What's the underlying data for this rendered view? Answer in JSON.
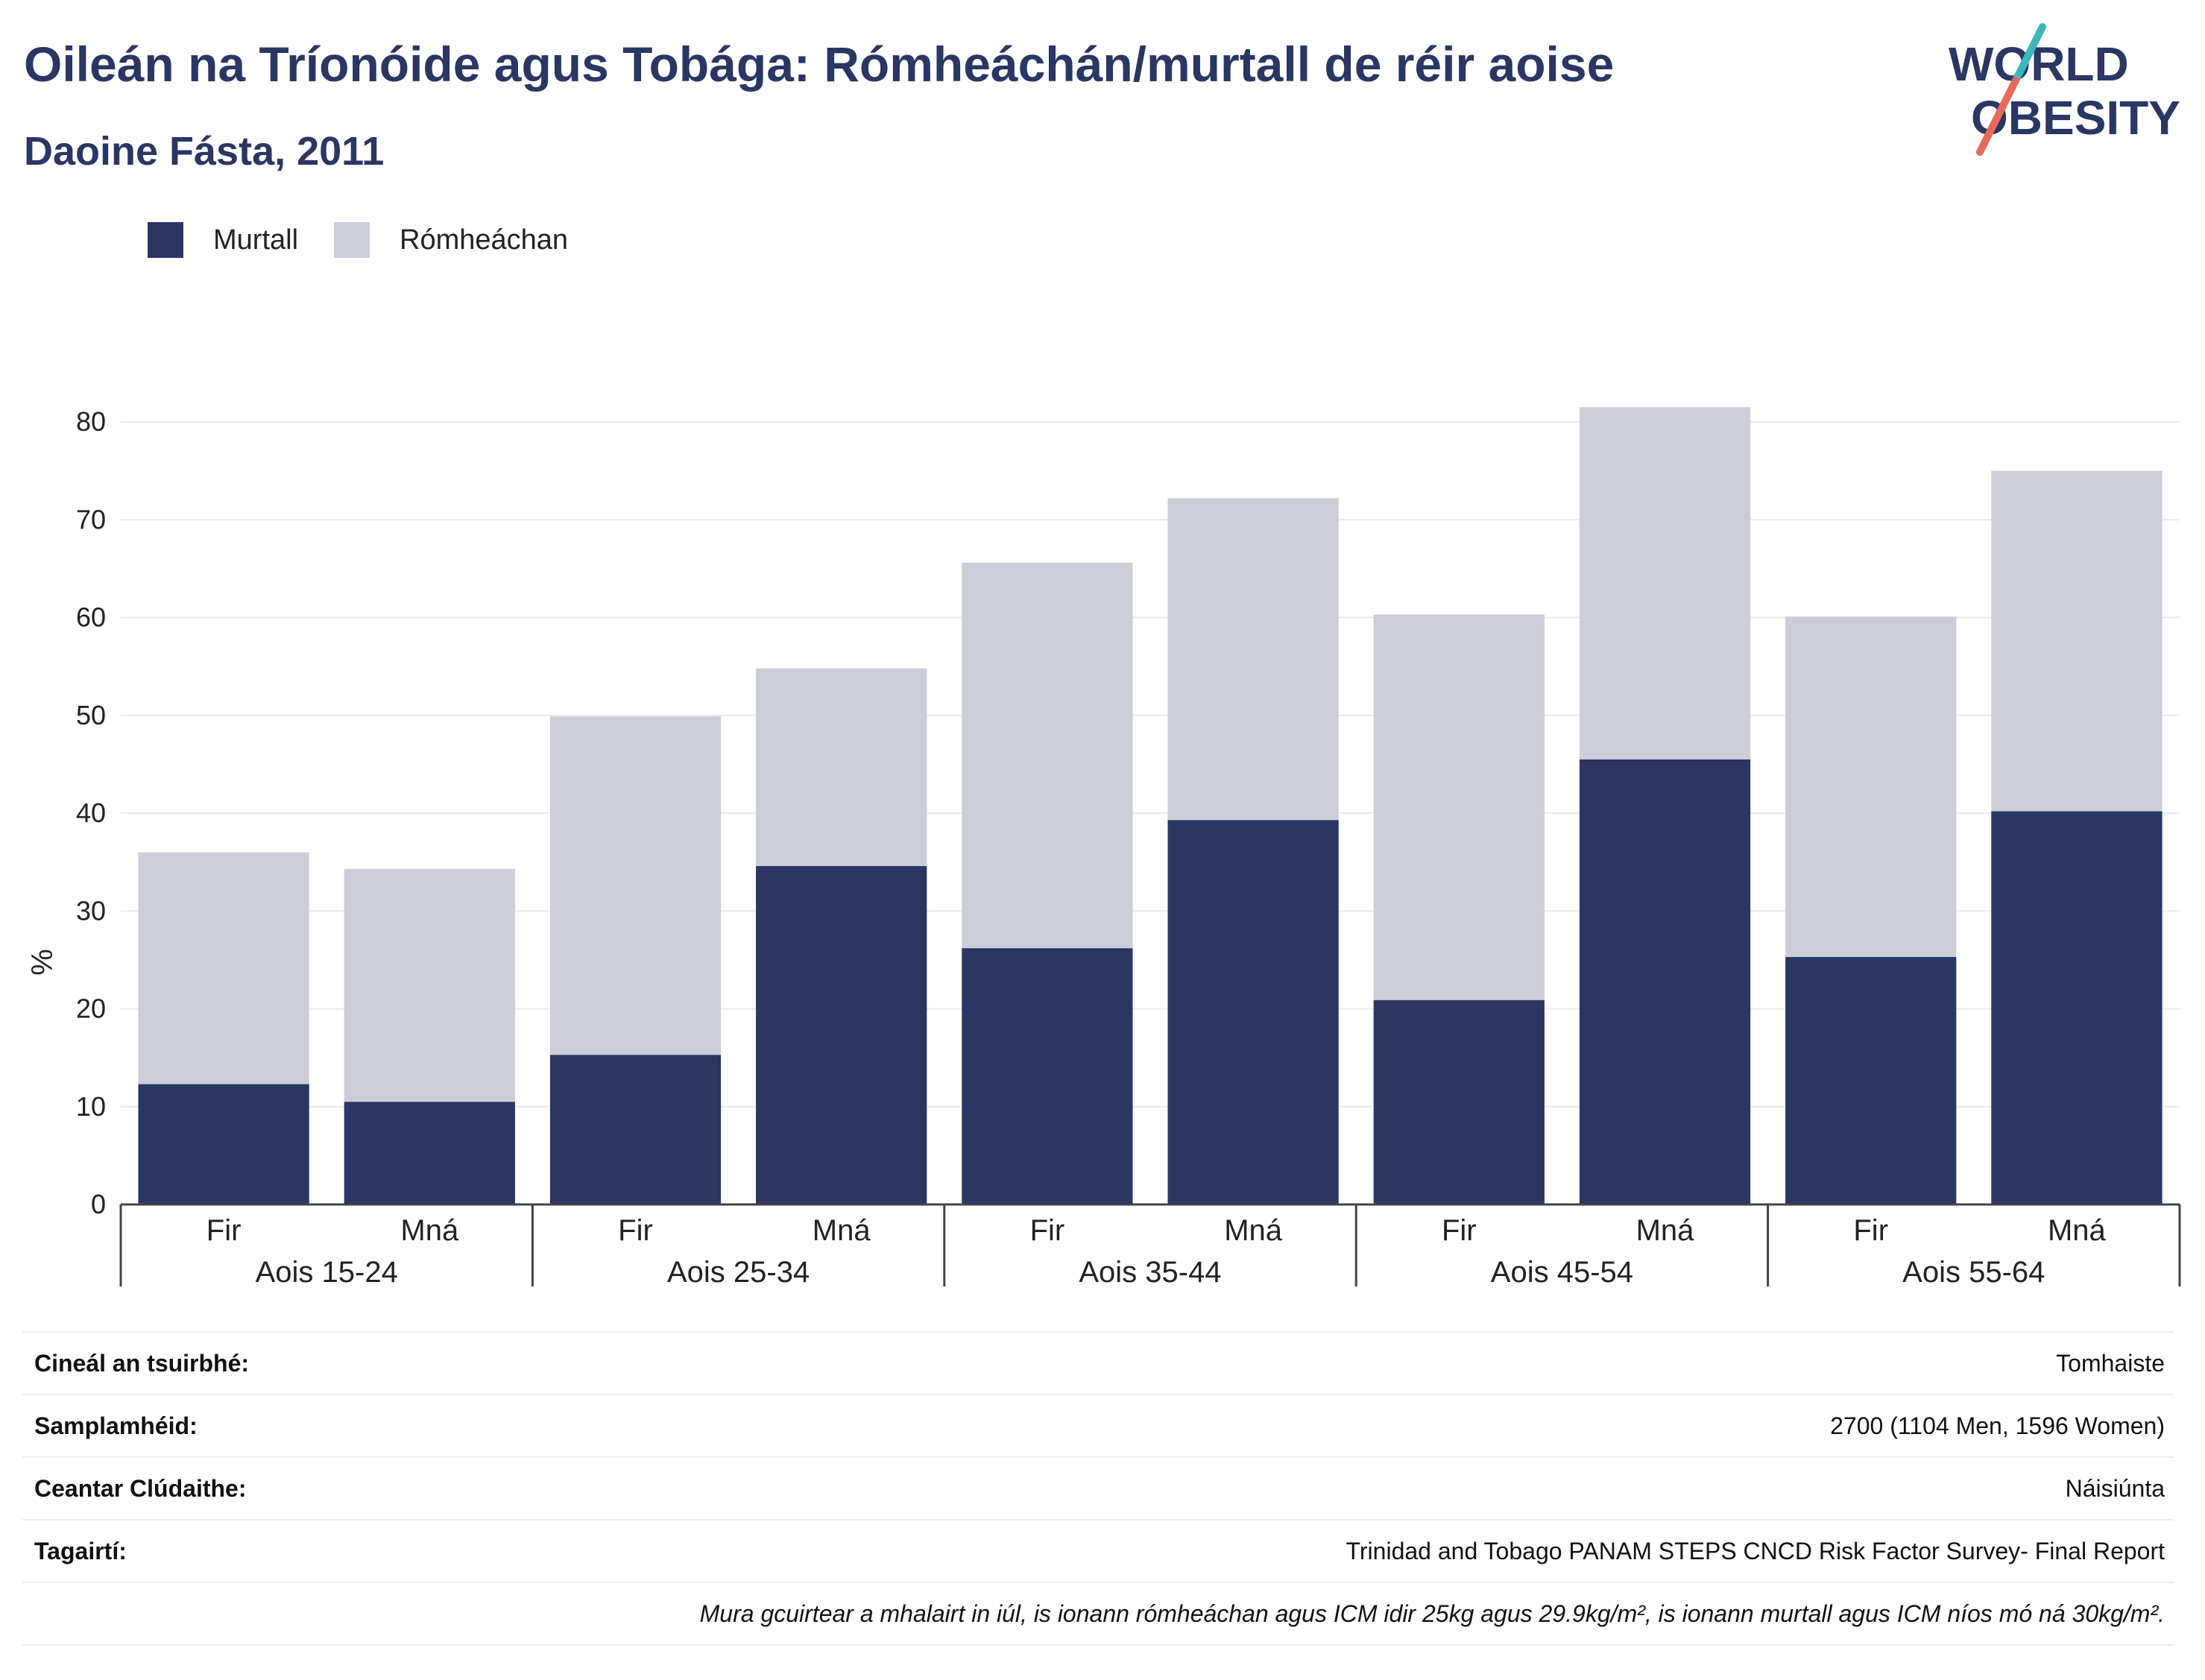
{
  "header": {
    "title": "Oileán na Tríonóide agus Tobága: Rómheáchán/murtall de réir aoise",
    "subtitle": "Daoine Fásta, 2011"
  },
  "logo": {
    "line1": "WORLD",
    "line2": "OBESITY",
    "colors": {
      "text": "#2a3663",
      "slash_top": "#3bb8b8",
      "slash_bottom": "#e8695a"
    }
  },
  "legend": [
    {
      "label": "Murtall",
      "color": "#2a3663"
    },
    {
      "label": "Rómheáchan",
      "color": "#cbcdd8"
    }
  ],
  "chart_data": {
    "type": "bar",
    "stacked": true,
    "title": "Oileán na Tríonóide agus Tobága: Rómheáchán/murtall de réir aoise",
    "subtitle": "Daoine Fásta, 2011",
    "ylabel": "%",
    "xlabel": "",
    "ylim": [
      0,
      80
    ],
    "yticks": [
      0,
      10,
      20,
      30,
      40,
      50,
      60,
      70,
      80
    ],
    "grid": true,
    "legend_position": "top-left",
    "groups": [
      "Aois 15-24",
      "Aois 25-34",
      "Aois 35-44",
      "Aois 45-54",
      "Aois 55-64"
    ],
    "categories": [
      "Fir",
      "Mná",
      "Fir",
      "Mná",
      "Fir",
      "Mná",
      "Fir",
      "Mná",
      "Fir",
      "Mná"
    ],
    "series": [
      {
        "name": "Murtall",
        "color": "#2a3663",
        "values": [
          12.3,
          10.5,
          15.3,
          34.6,
          26.2,
          39.3,
          20.9,
          45.5,
          25.3,
          40.2
        ]
      },
      {
        "name": "Rómheáchan",
        "color": "#cbcdd8",
        "values": [
          23.7,
          23.8,
          34.6,
          20.2,
          39.4,
          32.9,
          39.4,
          36.0,
          34.8,
          34.8
        ]
      }
    ]
  },
  "info": {
    "rows": [
      {
        "key": "Cineál an tsuirbhé:",
        "value": "Tomhaiste"
      },
      {
        "key": "Samplamhéid:",
        "value": "2700 (1104 Men, 1596 Women)"
      },
      {
        "key": "Ceantar Clúdaithe:",
        "value": "Náisiúnta"
      },
      {
        "key": "Tagairtí:",
        "value": "Trinidad and Tobago PANAM STEPS CNCD Risk Factor Survey- Final Report"
      }
    ],
    "note": "Mura gcuirtear a mhalairt in iúl, is ionann rómheáchan agus ICM idir 25kg agus 29.9kg/m², is ionann murtall agus ICM níos mó ná 30kg/m²."
  }
}
